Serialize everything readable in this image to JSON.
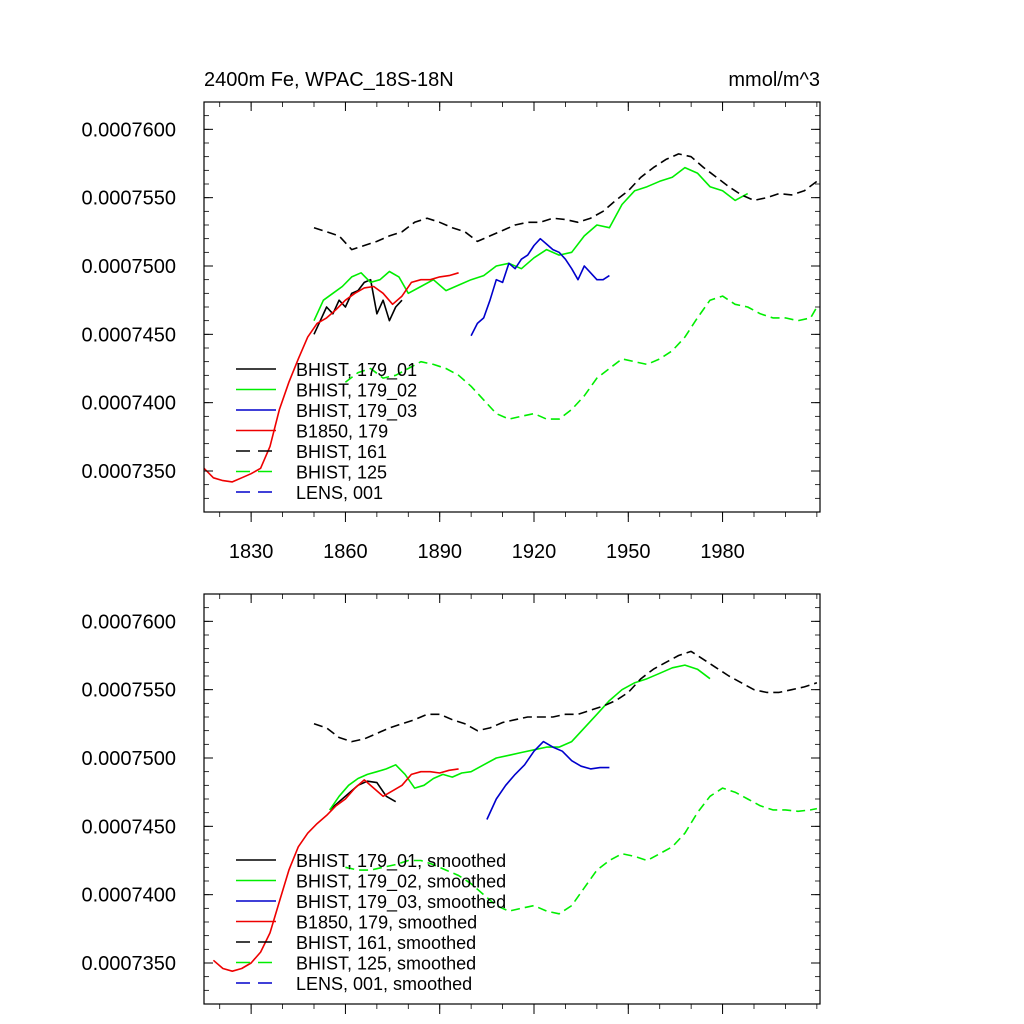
{
  "colors": {
    "black": "#000000",
    "green": "#00ee00",
    "blue": "#0000cc",
    "red": "#ee0000"
  },
  "chart_data": [
    {
      "type": "line",
      "title": "2400m Fe, WPAC_18S-18N",
      "units": "mmol/m^3",
      "xlim": [
        1815,
        2011
      ],
      "ylim": [
        0.000732,
        0.000762
      ],
      "xticks": [
        1830,
        1860,
        1890,
        1920,
        1950,
        1980
      ],
      "xtick_labels": [
        "1830",
        "1860",
        "1890",
        "1920",
        "1950",
        "1980"
      ],
      "yticks": [
        0.000735,
        0.00074,
        0.000745,
        0.00075,
        0.000755,
        0.00076
      ],
      "ytick_labels": [
        "0.0007350",
        "0.0007400",
        "0.0007450",
        "0.0007500",
        "0.0007550",
        "0.0007600"
      ],
      "legend_position": "bottom-left",
      "series": [
        {
          "name": "BHIST, 179_01",
          "color": "black",
          "dash": "solid",
          "x": [
            1850,
            1852,
            1854,
            1856,
            1858,
            1860,
            1862,
            1864,
            1866,
            1868,
            1870,
            1872,
            1874,
            1876,
            1878
          ],
          "y": [
            0.000745,
            0.000746,
            0.000747,
            0.0007465,
            0.0007475,
            0.000747,
            0.000748,
            0.0007482,
            0.0007488,
            0.000749,
            0.0007465,
            0.0007475,
            0.000746,
            0.000747,
            0.0007475
          ]
        },
        {
          "name": "BHIST, 179_02",
          "color": "green",
          "dash": "solid",
          "x": [
            1850,
            1853,
            1856,
            1859,
            1862,
            1865,
            1868,
            1871,
            1874,
            1877,
            1880,
            1884,
            1888,
            1892,
            1896,
            1900,
            1904,
            1908,
            1912,
            1916,
            1920,
            1924,
            1928,
            1932,
            1936,
            1940,
            1944,
            1948,
            1952,
            1956,
            1960,
            1964,
            1968,
            1972,
            1976,
            1980,
            1984,
            1988
          ],
          "y": [
            0.000746,
            0.0007475,
            0.000748,
            0.0007485,
            0.0007492,
            0.0007495,
            0.0007488,
            0.000749,
            0.0007496,
            0.0007492,
            0.000748,
            0.0007485,
            0.000749,
            0.0007482,
            0.0007486,
            0.000749,
            0.0007493,
            0.00075,
            0.0007502,
            0.0007498,
            0.0007506,
            0.0007512,
            0.0007508,
            0.000751,
            0.0007522,
            0.000753,
            0.0007528,
            0.0007545,
            0.0007555,
            0.0007558,
            0.0007562,
            0.0007565,
            0.0007572,
            0.0007568,
            0.0007558,
            0.0007555,
            0.0007548,
            0.0007553
          ]
        },
        {
          "name": "BHIST, 179_03",
          "color": "blue",
          "dash": "solid",
          "x": [
            1900,
            1902,
            1904,
            1906,
            1908,
            1910,
            1912,
            1914,
            1916,
            1918,
            1920,
            1922,
            1924,
            1926,
            1928,
            1930,
            1932,
            1934,
            1936,
            1938,
            1940,
            1942,
            1944
          ],
          "y": [
            0.0007449,
            0.0007458,
            0.0007462,
            0.0007475,
            0.000749,
            0.0007488,
            0.0007502,
            0.0007498,
            0.0007505,
            0.0007508,
            0.0007515,
            0.000752,
            0.0007516,
            0.0007512,
            0.000751,
            0.0007505,
            0.0007498,
            0.000749,
            0.00075,
            0.0007495,
            0.000749,
            0.000749,
            0.0007493
          ]
        },
        {
          "name": "B1850, 179",
          "color": "red",
          "dash": "solid",
          "x": [
            1815,
            1818,
            1821,
            1824,
            1827,
            1830,
            1833,
            1836,
            1839,
            1842,
            1845,
            1848,
            1851,
            1854,
            1857,
            1860,
            1863,
            1866,
            1869,
            1872,
            1875,
            1878,
            1881,
            1884,
            1887,
            1890,
            1893,
            1896
          ],
          "y": [
            0.0007352,
            0.0007345,
            0.0007343,
            0.0007342,
            0.0007345,
            0.0007348,
            0.0007352,
            0.0007368,
            0.0007395,
            0.0007415,
            0.0007432,
            0.0007448,
            0.0007458,
            0.0007462,
            0.0007468,
            0.0007475,
            0.000748,
            0.0007484,
            0.0007485,
            0.000748,
            0.0007472,
            0.0007478,
            0.0007488,
            0.000749,
            0.000749,
            0.0007492,
            0.0007493,
            0.0007495
          ]
        },
        {
          "name": "BHIST, 161",
          "color": "black",
          "dash": "dashed",
          "x": [
            1850,
            1854,
            1858,
            1862,
            1866,
            1870,
            1874,
            1878,
            1882,
            1886,
            1890,
            1894,
            1898,
            1902,
            1906,
            1910,
            1914,
            1918,
            1922,
            1926,
            1930,
            1934,
            1938,
            1942,
            1946,
            1950,
            1954,
            1958,
            1962,
            1966,
            1970,
            1974,
            1978,
            1982,
            1986,
            1990,
            1994,
            1998,
            2002,
            2006,
            2010
          ],
          "y": [
            0.0007528,
            0.0007525,
            0.0007522,
            0.0007512,
            0.0007515,
            0.0007518,
            0.0007522,
            0.0007525,
            0.0007532,
            0.0007535,
            0.0007532,
            0.0007528,
            0.0007525,
            0.0007518,
            0.0007522,
            0.0007526,
            0.000753,
            0.0007532,
            0.0007532,
            0.0007535,
            0.0007534,
            0.0007532,
            0.0007535,
            0.000754,
            0.0007548,
            0.0007555,
            0.0007565,
            0.0007572,
            0.0007578,
            0.0007582,
            0.000758,
            0.0007572,
            0.0007565,
            0.0007558,
            0.0007552,
            0.0007548,
            0.000755,
            0.0007553,
            0.0007552,
            0.0007555,
            0.0007562
          ]
        },
        {
          "name": "BHIST, 125",
          "color": "green",
          "dash": "dashed",
          "x": [
            1860,
            1864,
            1868,
            1872,
            1876,
            1880,
            1884,
            1888,
            1892,
            1896,
            1900,
            1904,
            1908,
            1912,
            1916,
            1920,
            1924,
            1928,
            1932,
            1936,
            1940,
            1944,
            1948,
            1952,
            1956,
            1960,
            1964,
            1968,
            1972,
            1976,
            1980,
            1984,
            1988,
            1992,
            1996,
            2000,
            2004,
            2008,
            2010
          ],
          "y": [
            0.0007415,
            0.0007422,
            0.0007425,
            0.0007418,
            0.000742,
            0.0007425,
            0.000743,
            0.0007428,
            0.0007425,
            0.000742,
            0.0007412,
            0.0007402,
            0.0007392,
            0.0007388,
            0.000739,
            0.0007392,
            0.0007388,
            0.0007388,
            0.0007395,
            0.0007405,
            0.0007418,
            0.0007425,
            0.0007432,
            0.000743,
            0.0007428,
            0.0007432,
            0.0007438,
            0.0007448,
            0.0007462,
            0.0007475,
            0.0007478,
            0.0007472,
            0.000747,
            0.0007465,
            0.0007462,
            0.0007462,
            0.000746,
            0.0007462,
            0.000747
          ]
        },
        {
          "name": "LENS, 001",
          "color": "blue",
          "dash": "dashed",
          "x": [],
          "y": []
        }
      ]
    },
    {
      "type": "line",
      "title": "",
      "xlim": [
        1815,
        2011
      ],
      "ylim": [
        0.000732,
        0.000762
      ],
      "xticks": [
        1830,
        1860,
        1890,
        1920,
        1950,
        1980
      ],
      "yticks": [
        0.000735,
        0.00074,
        0.000745,
        0.00075,
        0.000755,
        0.00076
      ],
      "ytick_labels": [
        "0.0007350",
        "0.0007400",
        "0.0007450",
        "0.0007500",
        "0.0007550",
        "0.0007600"
      ],
      "legend_position": "bottom-left",
      "series": [
        {
          "name": "BHIST, 179_01, smoothed",
          "color": "black",
          "dash": "solid",
          "x": [
            1855,
            1858,
            1861,
            1864,
            1867,
            1870,
            1873,
            1876
          ],
          "y": [
            0.0007462,
            0.0007468,
            0.0007474,
            0.000748,
            0.0007483,
            0.0007482,
            0.0007472,
            0.0007468
          ]
        },
        {
          "name": "BHIST, 179_02, smoothed",
          "color": "green",
          "dash": "solid",
          "x": [
            1855,
            1858,
            1861,
            1864,
            1867,
            1870,
            1873,
            1876,
            1879,
            1882,
            1885,
            1888,
            1891,
            1894,
            1897,
            1900,
            1904,
            1908,
            1912,
            1916,
            1920,
            1924,
            1928,
            1932,
            1936,
            1940,
            1944,
            1948,
            1952,
            1956,
            1960,
            1964,
            1968,
            1972,
            1976
          ],
          "y": [
            0.0007462,
            0.0007472,
            0.000748,
            0.0007485,
            0.0007488,
            0.000749,
            0.0007492,
            0.0007495,
            0.0007488,
            0.0007478,
            0.000748,
            0.0007485,
            0.0007488,
            0.0007486,
            0.0007489,
            0.000749,
            0.0007495,
            0.00075,
            0.0007502,
            0.0007504,
            0.0007506,
            0.0007508,
            0.0007508,
            0.0007512,
            0.0007522,
            0.0007532,
            0.0007542,
            0.000755,
            0.0007555,
            0.0007558,
            0.0007562,
            0.0007566,
            0.0007568,
            0.0007565,
            0.0007558
          ]
        },
        {
          "name": "BHIST, 179_03, smoothed",
          "color": "blue",
          "dash": "solid",
          "x": [
            1905,
            1908,
            1911,
            1914,
            1917,
            1920,
            1923,
            1926,
            1929,
            1932,
            1935,
            1938,
            1941,
            1944
          ],
          "y": [
            0.0007455,
            0.000747,
            0.000748,
            0.0007488,
            0.0007495,
            0.0007505,
            0.0007512,
            0.0007508,
            0.0007505,
            0.0007498,
            0.0007494,
            0.0007492,
            0.0007493,
            0.0007493
          ]
        },
        {
          "name": "B1850, 179, smoothed",
          "color": "red",
          "dash": "solid",
          "x": [
            1818,
            1821,
            1824,
            1827,
            1830,
            1833,
            1836,
            1839,
            1842,
            1845,
            1848,
            1851,
            1854,
            1857,
            1860,
            1863,
            1866,
            1869,
            1872,
            1875,
            1878,
            1881,
            1884,
            1887,
            1890,
            1893,
            1896
          ],
          "y": [
            0.0007352,
            0.0007346,
            0.0007344,
            0.0007346,
            0.000735,
            0.0007358,
            0.0007372,
            0.0007395,
            0.0007418,
            0.0007435,
            0.0007445,
            0.0007452,
            0.0007458,
            0.0007465,
            0.000747,
            0.0007478,
            0.0007484,
            0.0007478,
            0.0007472,
            0.0007476,
            0.000748,
            0.0007488,
            0.000749,
            0.000749,
            0.0007489,
            0.0007491,
            0.0007492
          ]
        },
        {
          "name": "BHIST, 161, smoothed",
          "color": "black",
          "dash": "dashed",
          "x": [
            1850,
            1854,
            1858,
            1862,
            1866,
            1870,
            1874,
            1878,
            1882,
            1886,
            1890,
            1894,
            1898,
            1902,
            1906,
            1910,
            1914,
            1918,
            1922,
            1926,
            1930,
            1934,
            1938,
            1942,
            1946,
            1950,
            1954,
            1958,
            1962,
            1966,
            1970,
            1974,
            1978,
            1982,
            1986,
            1990,
            1994,
            1998,
            2002,
            2006,
            2010
          ],
          "y": [
            0.0007525,
            0.0007522,
            0.0007515,
            0.0007512,
            0.0007514,
            0.0007518,
            0.0007522,
            0.0007525,
            0.0007528,
            0.0007532,
            0.0007532,
            0.0007528,
            0.0007525,
            0.000752,
            0.0007522,
            0.0007526,
            0.0007528,
            0.000753,
            0.000753,
            0.000753,
            0.0007532,
            0.0007532,
            0.0007535,
            0.0007538,
            0.0007542,
            0.0007548,
            0.0007558,
            0.0007565,
            0.000757,
            0.0007575,
            0.0007578,
            0.0007572,
            0.0007566,
            0.000756,
            0.0007555,
            0.000755,
            0.0007548,
            0.0007548,
            0.000755,
            0.0007552,
            0.0007555
          ]
        },
        {
          "name": "BHIST, 125, smoothed",
          "color": "green",
          "dash": "dashed",
          "x": [
            1860,
            1864,
            1868,
            1872,
            1876,
            1880,
            1884,
            1888,
            1892,
            1896,
            1900,
            1904,
            1908,
            1912,
            1916,
            1920,
            1924,
            1928,
            1932,
            1936,
            1940,
            1944,
            1948,
            1952,
            1956,
            1960,
            1964,
            1968,
            1972,
            1976,
            1980,
            1984,
            1988,
            1992,
            1996,
            2000,
            2004,
            2008,
            2010
          ],
          "y": [
            0.000742,
            0.0007418,
            0.0007418,
            0.000742,
            0.0007422,
            0.0007425,
            0.0007425,
            0.0007422,
            0.0007418,
            0.0007414,
            0.0007408,
            0.00074,
            0.0007392,
            0.0007388,
            0.000739,
            0.0007392,
            0.0007388,
            0.0007386,
            0.0007392,
            0.0007405,
            0.0007418,
            0.0007425,
            0.000743,
            0.0007428,
            0.0007425,
            0.000743,
            0.0007435,
            0.0007445,
            0.000746,
            0.0007472,
            0.0007478,
            0.0007475,
            0.000747,
            0.0007465,
            0.0007462,
            0.0007462,
            0.0007461,
            0.0007462,
            0.0007463
          ]
        },
        {
          "name": "LENS, 001, smoothed",
          "color": "blue",
          "dash": "dashed",
          "x": [],
          "y": []
        }
      ]
    }
  ]
}
